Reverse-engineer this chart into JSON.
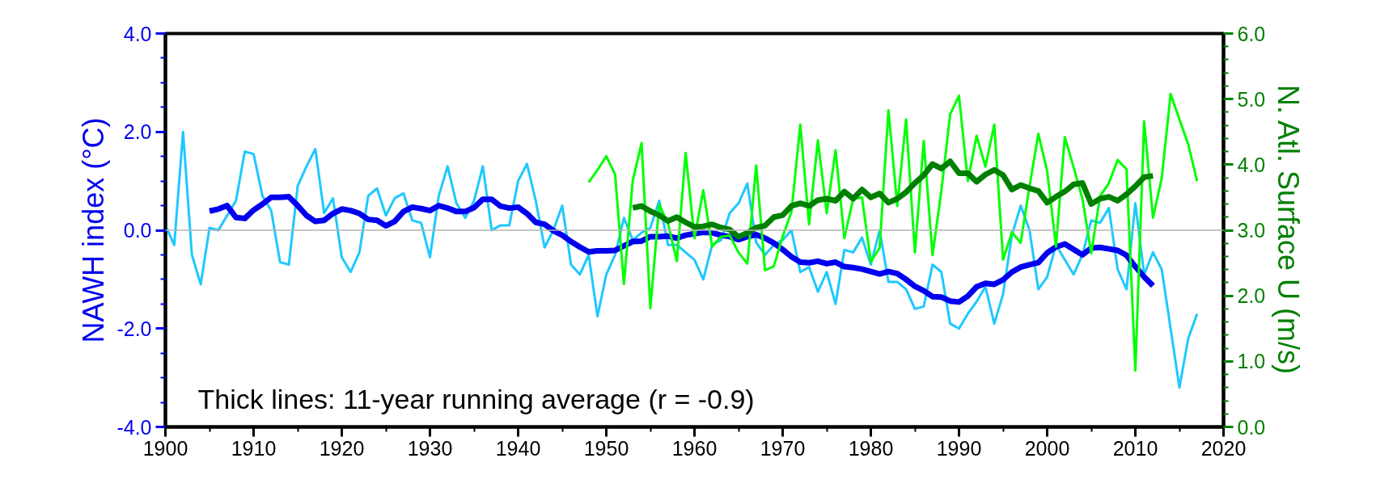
{
  "chart_data": {
    "type": "line",
    "ylabel": "NAWH index (°C)",
    "y2label": "N. Atl. Surface U (m/s)",
    "annotations": [
      "Thick lines: 11-year running average (r = -0.9)"
    ],
    "xlim": [
      1900,
      2020
    ],
    "xticks": [
      1900,
      {
        "value": 1905,
        "label": null
      },
      1910,
      {
        "value": 1915,
        "label": null
      },
      1920,
      {
        "value": 1925,
        "label": null
      },
      1930,
      {
        "value": 1935,
        "label": null
      },
      1940,
      {
        "value": 1945,
        "label": null
      },
      1950,
      {
        "value": 1955,
        "label": null
      },
      1960,
      {
        "value": 1965,
        "label": null
      },
      1970,
      {
        "value": 1975,
        "label": null
      },
      1980,
      {
        "value": 1985,
        "label": null
      },
      1990,
      {
        "value": 1995,
        "label": null
      },
      2000,
      {
        "value": 2005,
        "label": null
      },
      2010,
      {
        "value": 2015,
        "label": null
      },
      2020
    ],
    "ylim": [
      -4,
      4
    ],
    "yticks": [
      {
        "value": -4,
        "label": "-4.0"
      },
      {
        "value": -3.5,
        "label": null
      },
      {
        "value": -3,
        "label": null
      },
      {
        "value": -2.5,
        "label": null
      },
      {
        "value": -2,
        "label": "-2.0"
      },
      {
        "value": -1.5,
        "label": null
      },
      {
        "value": -1,
        "label": null
      },
      {
        "value": -0.5,
        "label": null
      },
      {
        "value": 0,
        "label": "0.0"
      },
      {
        "value": 0.5,
        "label": null
      },
      {
        "value": 1,
        "label": null
      },
      {
        "value": 1.5,
        "label": null
      },
      {
        "value": 2,
        "label": "2.0"
      },
      {
        "value": 2.5,
        "label": null
      },
      {
        "value": 3,
        "label": null
      },
      {
        "value": 3.5,
        "label": null
      },
      {
        "value": 4,
        "label": "4.0"
      }
    ],
    "y2lim": [
      0,
      6
    ],
    "y2ticks": [
      {
        "value": 0,
        "label": "0.0"
      },
      {
        "value": 0.2,
        "label": null
      },
      {
        "value": 0.4,
        "label": null
      },
      {
        "value": 0.6,
        "label": null
      },
      {
        "value": 0.8,
        "label": null
      },
      {
        "value": 1,
        "label": "1.0"
      },
      {
        "value": 1.2,
        "label": null
      },
      {
        "value": 1.4,
        "label": null
      },
      {
        "value": 1.6,
        "label": null
      },
      {
        "value": 1.8,
        "label": null
      },
      {
        "value": 2,
        "label": "2.0"
      },
      {
        "value": 2.2,
        "label": null
      },
      {
        "value": 2.4,
        "label": null
      },
      {
        "value": 2.6,
        "label": null
      },
      {
        "value": 2.8,
        "label": null
      },
      {
        "value": 3,
        "label": "3.0"
      },
      {
        "value": 3.2,
        "label": null
      },
      {
        "value": 3.4,
        "label": null
      },
      {
        "value": 3.6,
        "label": null
      },
      {
        "value": 3.8,
        "label": null
      },
      {
        "value": 4,
        "label": "4.0"
      },
      {
        "value": 4.2,
        "label": null
      },
      {
        "value": 4.4,
        "label": null
      },
      {
        "value": 4.6,
        "label": null
      },
      {
        "value": 4.8,
        "label": null
      },
      {
        "value": 5,
        "label": "5.0"
      },
      {
        "value": 5.2,
        "label": null
      },
      {
        "value": 5.4,
        "label": null
      },
      {
        "value": 5.6,
        "label": null
      },
      {
        "value": 5.8,
        "label": null
      },
      {
        "value": 6,
        "label": "6.0"
      }
    ],
    "grid": false,
    "ref_lines": [
      {
        "axis": "y",
        "value": 0,
        "color": "#b4b4b4"
      }
    ],
    "series": [
      {
        "color": "#1ec8ff",
        "x": [
          1900,
          1901,
          1902,
          1903,
          1904,
          1905,
          1906,
          1907,
          1908,
          1909,
          1910,
          1911,
          1912,
          1913,
          1914,
          1915,
          1916,
          1917,
          1918,
          1919,
          1920,
          1921,
          1922,
          1923,
          1924,
          1925,
          1926,
          1927,
          1928,
          1929,
          1930,
          1931,
          1932,
          1933,
          1934,
          1935,
          1936,
          1937,
          1938,
          1939,
          1940,
          1941,
          1942,
          1943,
          1944,
          1945,
          1946,
          1947,
          1948,
          1949,
          1950,
          1951,
          1952,
          1953,
          1954,
          1955,
          1956,
          1957,
          1958,
          1959,
          1960,
          1961,
          1962,
          1963,
          1964,
          1965,
          1966,
          1967,
          1968,
          1969,
          1970,
          1971,
          1972,
          1973,
          1974,
          1975,
          1976,
          1977,
          1978,
          1979,
          1980,
          1981,
          1982,
          1983,
          1984,
          1985,
          1986,
          1987,
          1988,
          1989,
          1990,
          1991,
          1992,
          1993,
          1994,
          1995,
          1996,
          1997,
          1998,
          1999,
          2000,
          2001,
          2002,
          2003,
          2004,
          2005,
          2006,
          2007,
          2008,
          2009,
          2010,
          2011,
          2012,
          2013,
          2014,
          2015,
          2016,
          2017
        ],
        "values": [
          0.1,
          -0.3,
          2.0,
          -0.5,
          -1.1,
          0.05,
          0.0,
          0.3,
          0.6,
          1.6,
          1.55,
          0.7,
          0.4,
          -0.65,
          -0.7,
          0.9,
          1.3,
          1.65,
          0.35,
          0.65,
          -0.55,
          -0.85,
          -0.45,
          0.7,
          0.85,
          0.3,
          0.65,
          0.75,
          0.2,
          0.15,
          -0.55,
          0.7,
          1.3,
          0.55,
          0.25,
          0.6,
          1.3,
          0.0,
          0.1,
          0.1,
          1.0,
          1.35,
          0.6,
          -0.35,
          0.0,
          0.5,
          -0.7,
          -0.9,
          -0.5,
          -1.75,
          -0.9,
          -0.5,
          0.25,
          -0.2,
          -0.05,
          0.05,
          0.6,
          -0.3,
          -0.3,
          -0.45,
          -0.6,
          -1.0,
          -0.3,
          -0.2,
          0.35,
          0.55,
          0.95,
          -0.25,
          -0.5,
          -0.3,
          -0.2,
          0.0,
          -0.85,
          -0.75,
          -1.25,
          -0.85,
          -1.5,
          -0.4,
          -0.45,
          -0.15,
          -0.7,
          0.0,
          -1.05,
          -1.05,
          -1.2,
          -1.6,
          -1.55,
          -0.7,
          -0.85,
          -1.9,
          -2.0,
          -1.7,
          -1.45,
          -1.15,
          -1.9,
          -1.3,
          -0.1,
          0.5,
          0.0,
          -1.2,
          -0.95,
          -0.3,
          -0.6,
          -0.9,
          -0.5,
          0.2,
          0.15,
          0.45,
          -0.8,
          -1.2,
          0.55,
          -0.9,
          -0.45,
          -0.8,
          -2.0,
          -3.2,
          -2.2,
          -1.7
        ]
      },
      {
        "color": "#0000ee",
        "x": [
          1905,
          1906,
          1907,
          1908,
          1909,
          1910,
          1911,
          1912,
          1913,
          1914,
          1915,
          1916,
          1917,
          1918,
          1919,
          1920,
          1921,
          1922,
          1923,
          1924,
          1925,
          1926,
          1927,
          1928,
          1929,
          1930,
          1931,
          1932,
          1933,
          1934,
          1935,
          1936,
          1937,
          1938,
          1939,
          1940,
          1941,
          1942,
          1943,
          1944,
          1945,
          1946,
          1947,
          1948,
          1949,
          1950,
          1951,
          1952,
          1953,
          1954,
          1955,
          1956,
          1957,
          1958,
          1959,
          1960,
          1961,
          1962,
          1963,
          1964,
          1965,
          1966,
          1967,
          1968,
          1969,
          1970,
          1971,
          1972,
          1973,
          1974,
          1975,
          1976,
          1977,
          1978,
          1979,
          1980,
          1981,
          1982,
          1983,
          1984,
          1985,
          1986,
          1987,
          1988,
          1989,
          1990,
          1991,
          1992,
          1993,
          1994,
          1995,
          1996,
          1997,
          1998,
          1999,
          2000,
          2001,
          2002,
          2003,
          2004,
          2005,
          2006,
          2007,
          2008,
          2009,
          2010,
          2011,
          2012
        ],
        "values": [
          0.39,
          0.43,
          0.5,
          0.26,
          0.24,
          0.41,
          0.53,
          0.67,
          0.67,
          0.68,
          0.5,
          0.3,
          0.18,
          0.2,
          0.34,
          0.43,
          0.4,
          0.34,
          0.22,
          0.2,
          0.09,
          0.18,
          0.38,
          0.47,
          0.44,
          0.4,
          0.5,
          0.45,
          0.38,
          0.38,
          0.46,
          0.63,
          0.63,
          0.49,
          0.45,
          0.47,
          0.34,
          0.16,
          0.12,
          -0.01,
          -0.1,
          -0.23,
          -0.34,
          -0.44,
          -0.42,
          -0.42,
          -0.41,
          -0.32,
          -0.23,
          -0.22,
          -0.13,
          -0.13,
          -0.12,
          -0.16,
          -0.1,
          -0.07,
          -0.04,
          -0.05,
          -0.1,
          -0.13,
          -0.19,
          -0.13,
          -0.09,
          -0.16,
          -0.26,
          -0.39,
          -0.54,
          -0.65,
          -0.66,
          -0.63,
          -0.68,
          -0.65,
          -0.74,
          -0.76,
          -0.79,
          -0.84,
          -0.89,
          -0.84,
          -0.88,
          -1.0,
          -1.14,
          -1.23,
          -1.35,
          -1.36,
          -1.44,
          -1.46,
          -1.34,
          -1.15,
          -1.08,
          -1.1,
          -1.01,
          -0.85,
          -0.75,
          -0.7,
          -0.66,
          -0.46,
          -0.34,
          -0.28,
          -0.39,
          -0.5,
          -0.36,
          -0.35,
          -0.38,
          -0.41,
          -0.51,
          -0.74,
          -0.95,
          -1.13
        ]
      },
      {
        "color": "#00ff00",
        "axis": "y2",
        "x": [
          1948,
          1949,
          1950,
          1951,
          1952,
          1953,
          1954,
          1955,
          1956,
          1957,
          1958,
          1959,
          1960,
          1961,
          1962,
          1963,
          1964,
          1965,
          1966,
          1967,
          1968,
          1969,
          1970,
          1971,
          1972,
          1973,
          1974,
          1975,
          1976,
          1977,
          1978,
          1979,
          1980,
          1981,
          1982,
          1983,
          1984,
          1985,
          1986,
          1987,
          1988,
          1989,
          1990,
          1991,
          1992,
          1993,
          1994,
          1995,
          1996,
          1997,
          1998,
          1999,
          2000,
          2001,
          2002,
          2003,
          2004,
          2005,
          2006,
          2007,
          2008,
          2009,
          2010,
          2011,
          2012,
          2013,
          2014,
          2015,
          2016,
          2017
        ],
        "values": [
          3.73,
          3.92,
          4.13,
          3.85,
          2.18,
          3.76,
          4.33,
          1.81,
          3.39,
          3.1,
          2.53,
          4.18,
          2.88,
          3.61,
          2.75,
          2.9,
          2.92,
          2.66,
          2.49,
          3.99,
          2.39,
          2.45,
          2.9,
          3.28,
          4.61,
          3.09,
          4.37,
          3.26,
          4.22,
          2.88,
          3.48,
          3.5,
          2.52,
          2.73,
          4.83,
          3.37,
          4.69,
          2.66,
          4.36,
          2.62,
          3.6,
          4.77,
          5.05,
          3.75,
          4.44,
          3.97,
          4.61,
          2.55,
          2.97,
          2.81,
          3.67,
          4.47,
          3.9,
          2.75,
          4.42,
          3.96,
          3.48,
          2.65,
          3.52,
          3.72,
          4.07,
          3.93,
          0.86,
          4.66,
          3.19,
          3.8,
          5.08,
          4.69,
          4.31,
          3.75
        ]
      },
      {
        "color": "#008000",
        "axis": "y2",
        "x": [
          1953,
          1954,
          1955,
          1956,
          1957,
          1958,
          1959,
          1960,
          1961,
          1962,
          1963,
          1964,
          1965,
          1966,
          1967,
          1968,
          1969,
          1970,
          1971,
          1972,
          1973,
          1974,
          1975,
          1976,
          1977,
          1978,
          1979,
          1980,
          1981,
          1982,
          1983,
          1984,
          1985,
          1986,
          1987,
          1988,
          1989,
          1990,
          1991,
          1992,
          1993,
          1994,
          1995,
          1996,
          1997,
          1998,
          1999,
          2000,
          2001,
          2002,
          2003,
          2004,
          2005,
          2006,
          2007,
          2008,
          2009,
          2010,
          2011,
          2012
        ],
        "values": [
          3.34,
          3.37,
          3.29,
          3.23,
          3.14,
          3.2,
          3.12,
          3.05,
          3.06,
          3.09,
          3.04,
          3.01,
          2.9,
          2.96,
          3.04,
          3.07,
          3.2,
          3.23,
          3.37,
          3.41,
          3.37,
          3.46,
          3.48,
          3.45,
          3.59,
          3.48,
          3.62,
          3.5,
          3.56,
          3.42,
          3.48,
          3.58,
          3.72,
          3.84,
          4.01,
          3.94,
          4.05,
          3.87,
          3.87,
          3.74,
          3.85,
          3.92,
          3.84,
          3.62,
          3.69,
          3.64,
          3.6,
          3.42,
          3.51,
          3.59,
          3.7,
          3.72,
          3.4,
          3.48,
          3.51,
          3.45,
          3.55,
          3.67,
          3.81,
          3.83
        ]
      }
    ]
  }
}
